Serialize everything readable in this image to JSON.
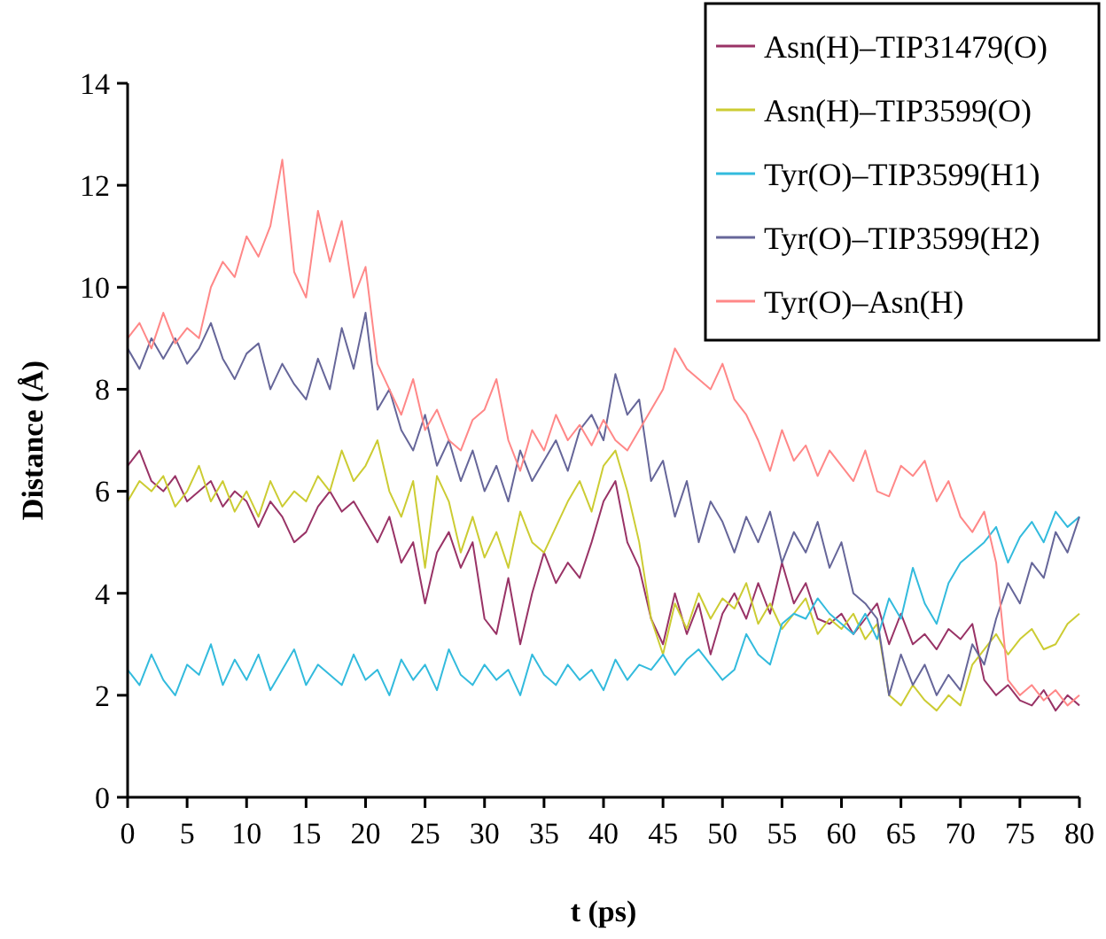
{
  "chart_data": {
    "type": "line",
    "xlabel": "t (ps)",
    "ylabel": "Distance (Å)",
    "xlim": [
      0,
      80
    ],
    "ylim": [
      0,
      14
    ],
    "xticks": [
      0,
      5,
      10,
      15,
      20,
      25,
      30,
      35,
      40,
      45,
      50,
      55,
      60,
      65,
      70,
      75,
      80
    ],
    "yticks": [
      0,
      2,
      4,
      6,
      8,
      10,
      12,
      14
    ],
    "legend": "top right",
    "grid": false,
    "marker": "none",
    "line_style": "solid",
    "x": [
      0,
      1,
      2,
      3,
      4,
      5,
      6,
      7,
      8,
      9,
      10,
      11,
      12,
      13,
      14,
      15,
      16,
      17,
      18,
      19,
      20,
      21,
      22,
      23,
      24,
      25,
      26,
      27,
      28,
      29,
      30,
      31,
      32,
      33,
      34,
      35,
      36,
      37,
      38,
      39,
      40,
      41,
      42,
      43,
      44,
      45,
      46,
      47,
      48,
      49,
      50,
      51,
      52,
      53,
      54,
      55,
      56,
      57,
      58,
      59,
      60,
      61,
      62,
      63,
      64,
      65,
      66,
      67,
      68,
      69,
      70,
      71,
      72,
      73,
      74,
      75,
      76,
      77,
      78,
      79,
      80
    ],
    "series": [
      {
        "name": "Asn(H)–TIP31479(O)",
        "color": "#993366",
        "values": [
          6.5,
          6.8,
          6.2,
          6.0,
          6.3,
          5.8,
          6.0,
          6.2,
          5.7,
          6.0,
          5.8,
          5.3,
          5.8,
          5.5,
          5.0,
          5.2,
          5.7,
          6.0,
          5.6,
          5.8,
          5.4,
          5.0,
          5.5,
          4.6,
          5.0,
          3.8,
          4.8,
          5.2,
          4.5,
          5.0,
          3.5,
          3.2,
          4.3,
          3.0,
          4.0,
          4.8,
          4.2,
          4.6,
          4.3,
          5.0,
          5.8,
          6.2,
          5.0,
          4.5,
          3.5,
          3.0,
          4.0,
          3.2,
          3.8,
          2.8,
          3.6,
          4.0,
          3.5,
          4.2,
          3.6,
          4.6,
          3.8,
          4.2,
          3.5,
          3.4,
          3.6,
          3.2,
          3.5,
          3.8,
          3.0,
          3.6,
          3.0,
          3.2,
          2.9,
          3.3,
          3.1,
          3.4,
          2.3,
          2.0,
          2.2,
          1.9,
          1.8,
          2.1,
          1.7,
          2.0,
          1.8
        ]
      },
      {
        "name": "Asn(H)–TIP3599(O)",
        "color": "#cccc33",
        "values": [
          5.8,
          6.2,
          6.0,
          6.3,
          5.7,
          6.0,
          6.5,
          5.8,
          6.2,
          5.6,
          6.0,
          5.5,
          6.2,
          5.7,
          6.0,
          5.8,
          6.3,
          6.0,
          6.8,
          6.2,
          6.5,
          7.0,
          6.0,
          5.5,
          6.2,
          4.5,
          6.3,
          5.8,
          4.8,
          5.5,
          4.7,
          5.2,
          4.5,
          5.6,
          5.0,
          4.8,
          5.3,
          5.8,
          6.2,
          5.6,
          6.5,
          6.8,
          6.0,
          5.0,
          3.5,
          2.8,
          3.8,
          3.3,
          4.0,
          3.5,
          3.9,
          3.7,
          4.2,
          3.4,
          3.8,
          3.3,
          3.6,
          3.9,
          3.2,
          3.5,
          3.3,
          3.6,
          3.1,
          3.4,
          2.0,
          1.8,
          2.2,
          1.9,
          1.7,
          2.0,
          1.8,
          2.6,
          2.9,
          3.2,
          2.8,
          3.1,
          3.3,
          2.9,
          3.0,
          3.4,
          3.6
        ]
      },
      {
        "name": "Tyr(O)–TIP3599(H1)",
        "color": "#33bbdd",
        "values": [
          2.5,
          2.2,
          2.8,
          2.3,
          2.0,
          2.6,
          2.4,
          3.0,
          2.2,
          2.7,
          2.3,
          2.8,
          2.1,
          2.5,
          2.9,
          2.2,
          2.6,
          2.4,
          2.2,
          2.8,
          2.3,
          2.5,
          2.0,
          2.7,
          2.3,
          2.6,
          2.1,
          2.9,
          2.4,
          2.2,
          2.6,
          2.3,
          2.5,
          2.0,
          2.8,
          2.4,
          2.2,
          2.6,
          2.3,
          2.5,
          2.1,
          2.7,
          2.3,
          2.6,
          2.5,
          2.8,
          2.4,
          2.7,
          2.9,
          2.6,
          2.3,
          2.5,
          3.2,
          2.8,
          2.6,
          3.4,
          3.6,
          3.5,
          3.9,
          3.6,
          3.4,
          3.2,
          3.6,
          3.1,
          3.9,
          3.5,
          4.5,
          3.8,
          3.4,
          4.2,
          4.6,
          4.8,
          5.0,
          5.3,
          4.6,
          5.1,
          5.4,
          5.0,
          5.6,
          5.3,
          5.5
        ]
      },
      {
        "name": "Tyr(O)–TIP3599(H2)",
        "color": "#666699",
        "values": [
          8.8,
          8.4,
          9.0,
          8.6,
          9.0,
          8.5,
          8.8,
          9.3,
          8.6,
          8.2,
          8.7,
          8.9,
          8.0,
          8.5,
          8.1,
          7.8,
          8.6,
          8.0,
          9.2,
          8.4,
          9.5,
          7.6,
          8.0,
          7.2,
          6.8,
          7.5,
          6.5,
          7.0,
          6.2,
          6.8,
          6.0,
          6.5,
          5.8,
          6.8,
          6.2,
          6.6,
          7.0,
          6.4,
          7.2,
          7.5,
          7.0,
          8.3,
          7.5,
          7.8,
          6.2,
          6.6,
          5.5,
          6.2,
          5.0,
          5.8,
          5.4,
          4.8,
          5.5,
          5.0,
          5.6,
          4.6,
          5.2,
          4.8,
          5.4,
          4.5,
          5.0,
          4.0,
          3.8,
          3.5,
          2.0,
          2.8,
          2.2,
          2.6,
          2.0,
          2.4,
          2.1,
          3.0,
          2.6,
          3.5,
          4.2,
          3.8,
          4.6,
          4.3,
          5.2,
          4.8,
          5.5
        ]
      },
      {
        "name": "Tyr(O)–Asn(H)",
        "color": "#ff8888",
        "values": [
          9.0,
          9.3,
          8.8,
          9.5,
          8.9,
          9.2,
          9.0,
          10.0,
          10.5,
          10.2,
          11.0,
          10.6,
          11.2,
          12.5,
          10.3,
          9.8,
          11.5,
          10.5,
          11.3,
          9.8,
          10.4,
          8.5,
          8.0,
          7.5,
          8.2,
          7.2,
          7.6,
          7.0,
          6.8,
          7.4,
          7.6,
          8.2,
          7.0,
          6.4,
          7.2,
          6.8,
          7.5,
          7.0,
          7.3,
          6.9,
          7.4,
          7.0,
          6.8,
          7.2,
          7.6,
          8.0,
          8.8,
          8.4,
          8.2,
          8.0,
          8.5,
          7.8,
          7.5,
          7.0,
          6.4,
          7.2,
          6.6,
          6.9,
          6.3,
          6.8,
          6.5,
          6.2,
          6.8,
          6.0,
          5.9,
          6.5,
          6.3,
          6.6,
          5.8,
          6.2,
          5.5,
          5.2,
          5.6,
          4.6,
          2.3,
          2.0,
          2.2,
          1.9,
          2.1,
          1.8,
          2.0
        ]
      }
    ]
  }
}
